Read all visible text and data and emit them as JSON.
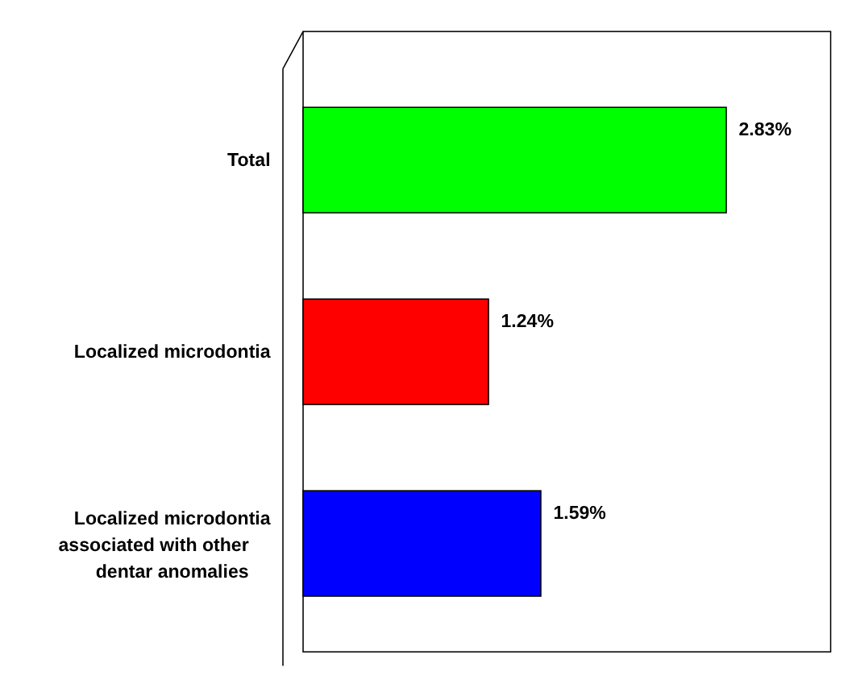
{
  "chart_data": {
    "type": "bar",
    "orientation": "horizontal",
    "categories": [
      "Total",
      "Localized microdontia",
      "Localized microdontia associated with other dentar anomalies"
    ],
    "values": [
      2.83,
      1.24,
      1.59
    ],
    "colors": [
      "#00ff00",
      "#ff0000",
      "#0000ff"
    ],
    "value_labels": [
      "2.83%",
      "1.24%",
      "1.59%"
    ]
  }
}
